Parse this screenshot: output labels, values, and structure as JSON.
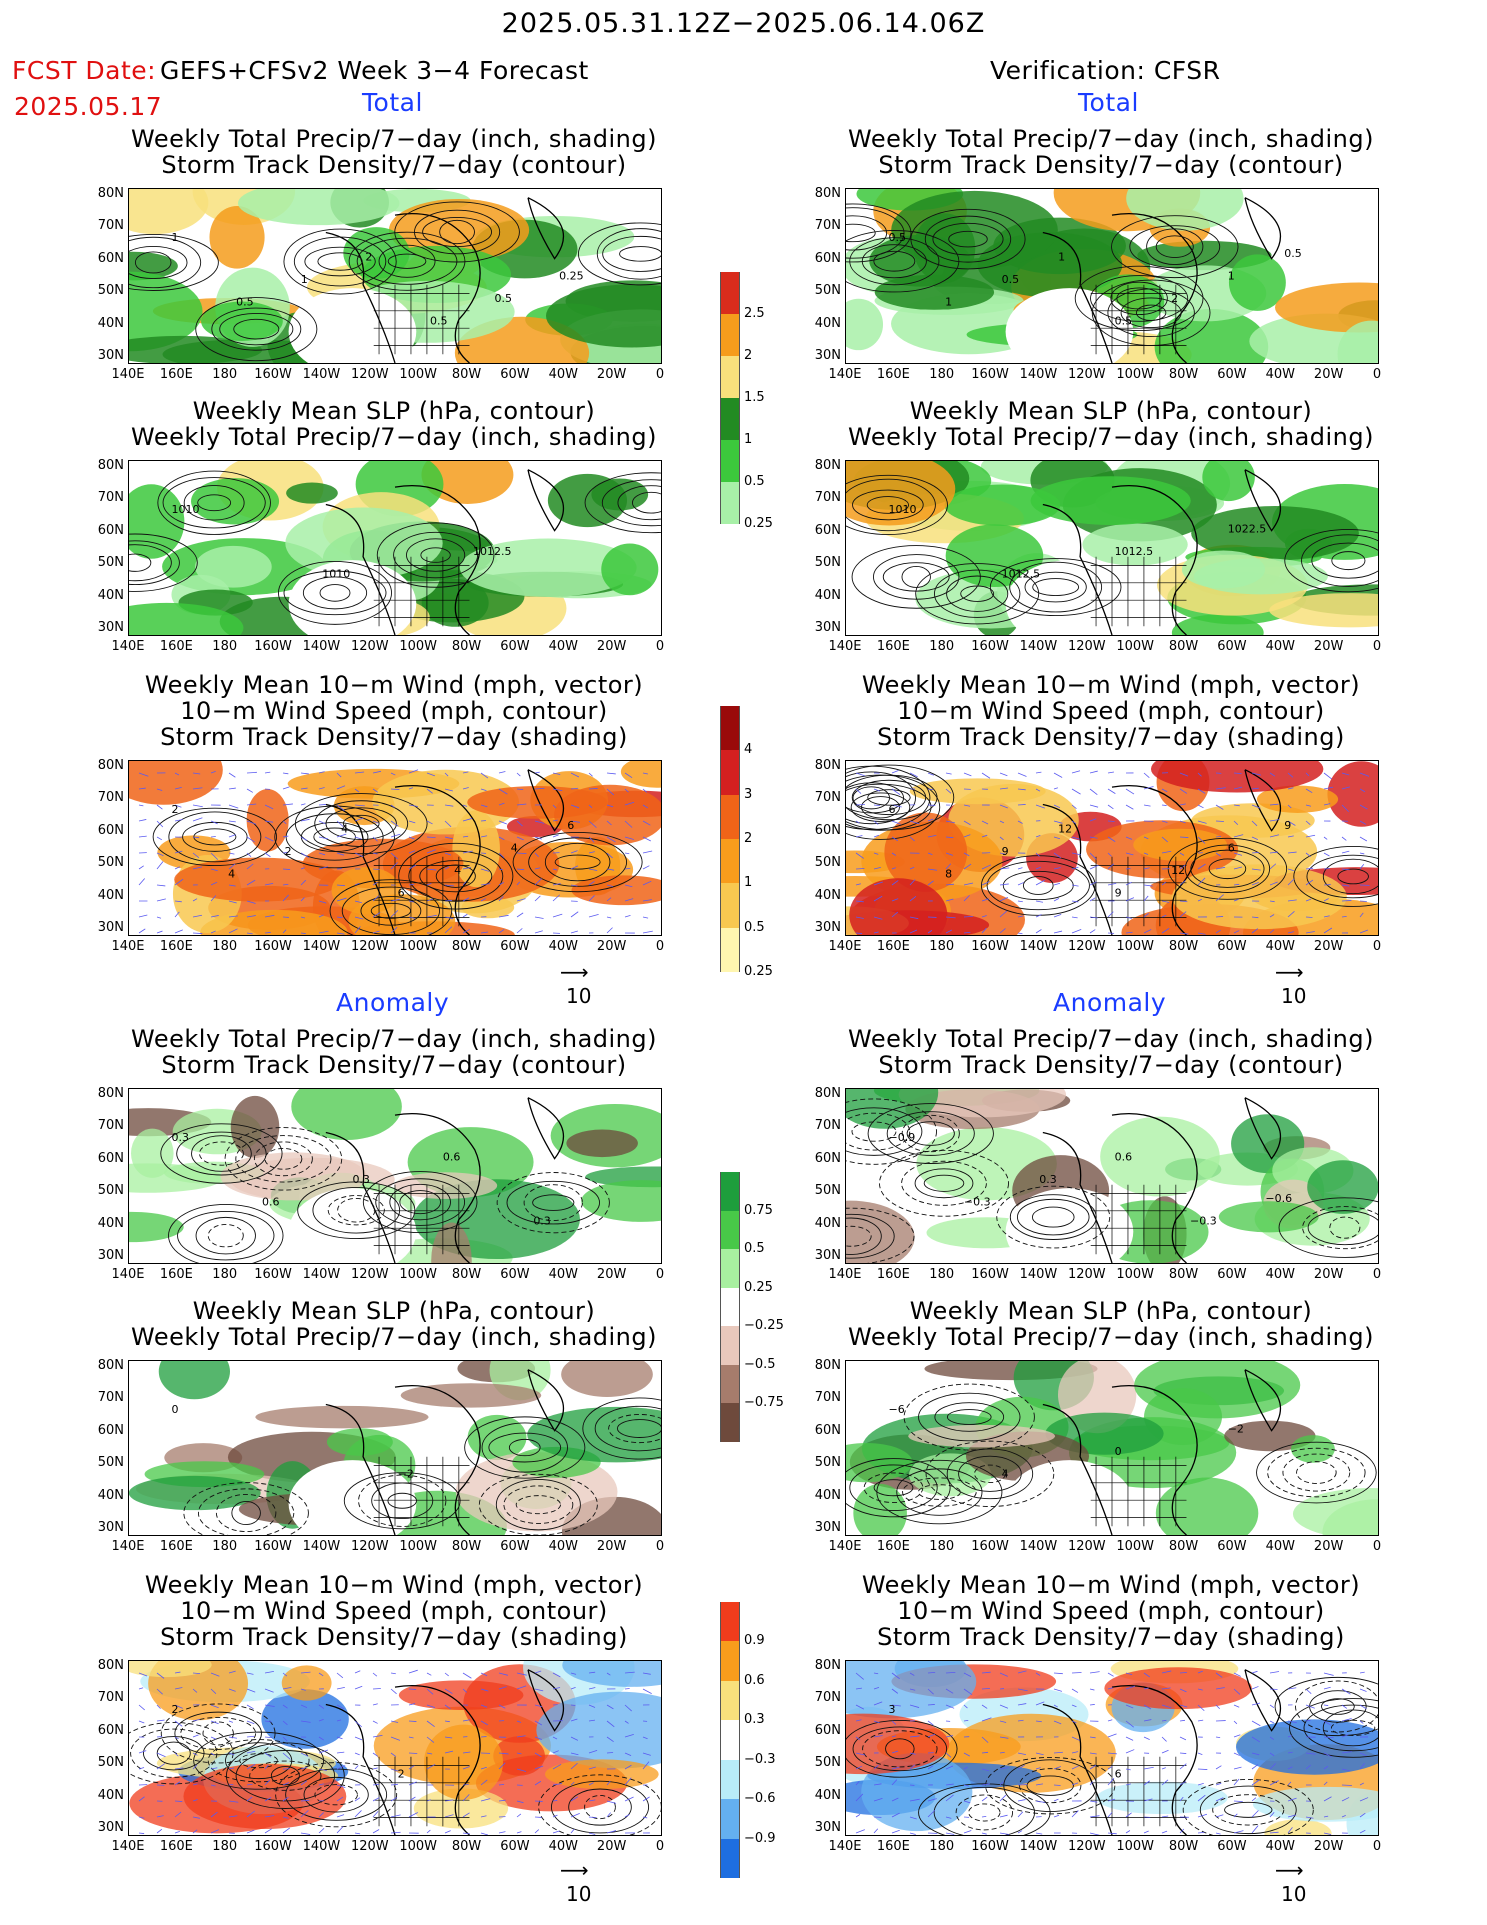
{
  "header": {
    "period": "2025.05.31.12Z−2025.06.14.06Z",
    "fcst_label": "FCST Date:",
    "fcst_date": "2025.05.17",
    "left_title": "GEFS+CFSv2 Week 3−4 Forecast",
    "right_title": "Verification: CFSR",
    "total": "Total",
    "anomaly": "Anomaly"
  },
  "titles": {
    "precip_storm": [
      "Weekly Total Precip/7−day (inch, shading)",
      "Storm Track Density/7−day (contour)"
    ],
    "slp_precip": [
      "Weekly Mean SLP (hPa, contour)",
      "Weekly Total Precip/7−day (inch, shading)"
    ],
    "wind_storm": [
      "Weekly Mean 10−m Wind (mph, vector)",
      "10−m Wind Speed (mph, contour)",
      "Storm Track Density/7−day (shading)"
    ]
  },
  "axes": {
    "lat": [
      "80N",
      "70N",
      "60N",
      "50N",
      "40N",
      "30N"
    ],
    "lon": [
      "140E",
      "160E",
      "180",
      "160W",
      "140W",
      "120W",
      "100W",
      "80W",
      "60W",
      "40W",
      "20W",
      "0"
    ]
  },
  "colorbars": {
    "total_precip": {
      "labels": [
        "2.5",
        "2",
        "1.5",
        "1",
        "0.5",
        "0.25"
      ],
      "colors": [
        "#d92c1c",
        "#f59c1c",
        "#f8e07c",
        "#228b22",
        "#3cc83c",
        "#a8f0a8"
      ]
    },
    "total_storm": {
      "labels": [
        "4",
        "3",
        "2",
        "1",
        "0.5",
        "0.25"
      ],
      "colors": [
        "#9a0a0a",
        "#d42020",
        "#f06418",
        "#f89c1c",
        "#f8c850",
        "#fff6b0"
      ]
    },
    "anom_precip": {
      "labels": [
        "0.75",
        "0.5",
        "0.25",
        "−0.25",
        "−0.5",
        "−0.75"
      ],
      "colors": [
        "#1e9e3c",
        "#48c848",
        "#a8f0a0",
        "#ffffff",
        "#e8c8bc",
        "#a67c6c",
        "#6e4a3c"
      ]
    },
    "anom_storm": {
      "labels": [
        "0.9",
        "0.6",
        "0.3",
        "−0.3",
        "−0.6",
        "−0.9"
      ],
      "colors": [
        "#f03c1c",
        "#f89c1c",
        "#f8e07c",
        "#ffffff",
        "#b8ecf8",
        "#64b0f0",
        "#1e6ee0"
      ]
    }
  },
  "vector_ref": "10",
  "panel_labels": {
    "r1L": [
      "1",
      "0.5",
      "1",
      "2",
      "0.5",
      "0.5",
      "0.25"
    ],
    "r1R": [
      "0.5",
      "1",
      "0.5",
      "1",
      "0.5",
      "2",
      "1",
      "0.5"
    ],
    "r2L": [
      "1010",
      "1010",
      "1012.5"
    ],
    "r2R": [
      "1010",
      "1012.5",
      "1012.5",
      "1022.5"
    ],
    "r3L": [
      "2",
      "4",
      "2",
      "4",
      "6",
      "4",
      "4",
      "6"
    ],
    "r3R": [
      "6",
      "8",
      "9",
      "12",
      "9",
      "12",
      "6",
      "9"
    ],
    "r4L": [
      "0.3",
      "0.6",
      "0.3",
      "0.6",
      "0.3"
    ],
    "r4R": [
      "−0.9",
      "−0.3",
      "0.3",
      "0.6",
      "−0.3",
      "−0.6"
    ],
    "r5L": [
      "0",
      "−2"
    ],
    "r5R": [
      "−6",
      "4",
      "0",
      "−2"
    ],
    "r6L": [
      "2",
      "2"
    ],
    "r6R": [
      "3",
      "6"
    ]
  },
  "colors": {
    "red_text": "#e01010",
    "blue_text": "#1a3cff"
  }
}
